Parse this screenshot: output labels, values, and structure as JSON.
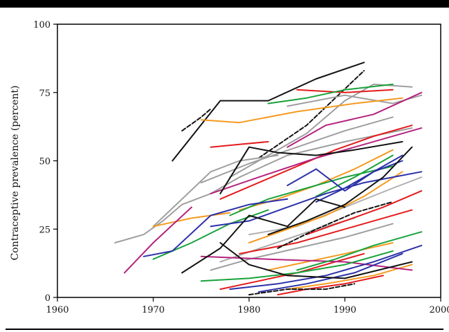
{
  "chart_data": {
    "type": "line",
    "title": "",
    "xlabel": "",
    "ylabel": "Contraceptive prevalence (percent)",
    "xlim": [
      1960,
      2000
    ],
    "ylim": [
      0,
      100
    ],
    "xticks": [
      "1960",
      "1970",
      "1980",
      "1990",
      "2000"
    ],
    "yticks": [
      "0",
      "25",
      "50",
      "75",
      "100"
    ],
    "grid": false,
    "series": [
      {
        "color": "#111111",
        "dash": "",
        "x": [
          1972,
          1977,
          1982,
          1987,
          1992
        ],
        "y": [
          50,
          72,
          72,
          80,
          86
        ]
      },
      {
        "color": "#111111",
        "dash": "6 3",
        "x": [
          1973,
          1975,
          1976
        ],
        "y": [
          61,
          66,
          69
        ]
      },
      {
        "color": "#111111",
        "dash": "6 3",
        "x": [
          1981,
          1986,
          1992
        ],
        "y": [
          51,
          63,
          83
        ]
      },
      {
        "color": "#9e9e9e",
        "dash": "",
        "x": [
          1966,
          1969,
          1971,
          1973,
          1976,
          1979,
          1984,
          1990,
          1997
        ],
        "y": [
          20,
          23,
          28,
          34,
          38,
          44,
          52,
          57,
          62
        ]
      },
      {
        "color": "#9e9e9e",
        "dash": "",
        "x": [
          1978,
          1982,
          1986,
          1990,
          1993,
          1997
        ],
        "y": [
          44,
          52,
          60,
          72,
          78,
          77
        ]
      },
      {
        "color": "#9e9e9e",
        "dash": "",
        "x": [
          1975,
          1980,
          1985,
          1990,
          1995
        ],
        "y": [
          42,
          49,
          55,
          61,
          66
        ]
      },
      {
        "color": "#9e9e9e",
        "dash": "",
        "x": [
          1970,
          1973,
          1976,
          1979,
          1983
        ],
        "y": [
          26,
          36,
          46,
          50,
          52
        ]
      },
      {
        "color": "#b0b0b0",
        "dash": "",
        "x": [
          1980,
          1985,
          1990,
          1995,
          1998
        ],
        "y": [
          23,
          26,
          33,
          40,
          44
        ]
      },
      {
        "color": "#9e9e9e",
        "dash": "",
        "x": [
          1984,
          1990,
          1995,
          1998
        ],
        "y": [
          70,
          74,
          71,
          74
        ]
      },
      {
        "color": "#9e9e9e",
        "dash": "",
        "x": [
          1976,
          1980,
          1985,
          1990,
          1995
        ],
        "y": [
          10,
          14,
          18,
          22,
          27
        ]
      },
      {
        "color": "#aaaaaa",
        "dash": "",
        "x": [
          1977,
          1982,
          1987,
          1991
        ],
        "y": [
          13,
          19,
          25,
          29
        ]
      },
      {
        "color": "#f59a1e",
        "dash": "",
        "x": [
          1975,
          1979,
          1985,
          1991,
          1996
        ],
        "y": [
          65,
          64,
          68,
          71,
          73
        ]
      },
      {
        "color": "#f59a1e",
        "dash": "",
        "x": [
          1970,
          1974,
          1978
        ],
        "y": [
          26,
          29,
          31
        ]
      },
      {
        "color": "#f59a1e",
        "dash": "",
        "x": [
          1980,
          1984,
          1988,
          1992,
          1996
        ],
        "y": [
          20,
          25,
          30,
          37,
          46
        ]
      },
      {
        "color": "#f59a1e",
        "dash": "",
        "x": [
          1979,
          1983,
          1987,
          1991,
          1995
        ],
        "y": [
          32,
          36,
          41,
          47,
          54
        ]
      },
      {
        "color": "#f59a1e",
        "dash": "",
        "x": [
          1982,
          1986,
          1990,
          1995
        ],
        "y": [
          10,
          13,
          16,
          20
        ]
      },
      {
        "color": "#f59a1e",
        "dash": "",
        "x": [
          1984,
          1988,
          1993,
          1997
        ],
        "y": [
          3,
          5,
          8,
          12
        ]
      },
      {
        "color": "#e31a1c",
        "dash": "",
        "x": [
          1985,
          1990,
          1995
        ],
        "y": [
          76,
          75,
          76
        ]
      },
      {
        "color": "#e31a1c",
        "dash": "",
        "x": [
          1977,
          1981,
          1985,
          1989,
          1993,
          1997
        ],
        "y": [
          36,
          42,
          48,
          54,
          59,
          63
        ]
      },
      {
        "color": "#e31a1c",
        "dash": "",
        "x": [
          1976,
          1979,
          1982
        ],
        "y": [
          55,
          56,
          57
        ]
      },
      {
        "color": "#e31a1c",
        "dash": "",
        "x": [
          1979,
          1985,
          1991,
          1997
        ],
        "y": [
          16,
          20,
          26,
          32
        ]
      },
      {
        "color": "#e31a1c",
        "dash": "",
        "x": [
          1986,
          1990,
          1994,
          1998
        ],
        "y": [
          23,
          28,
          33,
          39
        ]
      },
      {
        "color": "#e31a1c",
        "dash": "",
        "x": [
          1977,
          1981,
          1985,
          1989,
          1992
        ],
        "y": [
          3,
          6,
          9,
          13,
          16
        ]
      },
      {
        "color": "#e31a1c",
        "dash": "",
        "x": [
          1983,
          1986,
          1990,
          1994
        ],
        "y": [
          1,
          3,
          5,
          8
        ]
      },
      {
        "color": "#b5227d",
        "dash": "",
        "x": [
          1967,
          1970,
          1974
        ],
        "y": [
          9,
          20,
          33
        ]
      },
      {
        "color": "#b5227d",
        "dash": "",
        "x": [
          1976,
          1981,
          1987,
          1992,
          1998
        ],
        "y": [
          38,
          44,
          51,
          56,
          62
        ]
      },
      {
        "color": "#b5227d",
        "dash": "",
        "x": [
          1984,
          1988,
          1993,
          1998
        ],
        "y": [
          55,
          63,
          67,
          75
        ]
      },
      {
        "color": "#b5227d",
        "dash": "",
        "x": [
          1975,
          1982,
          1990,
          1997
        ],
        "y": [
          15,
          14,
          13,
          10
        ]
      },
      {
        "color": "#17a23a",
        "dash": "",
        "x": [
          1982,
          1986,
          1990,
          1995
        ],
        "y": [
          71,
          73,
          76,
          78
        ]
      },
      {
        "color": "#17a23a",
        "dash": "",
        "x": [
          1970,
          1974,
          1978,
          1982
        ],
        "y": [
          14,
          20,
          27,
          32
        ]
      },
      {
        "color": "#17a23a",
        "dash": "",
        "x": [
          1978,
          1982,
          1986,
          1990,
          1995
        ],
        "y": [
          30,
          36,
          40,
          44,
          48
        ]
      },
      {
        "color": "#17a23a",
        "dash": "",
        "x": [
          1975,
          1980,
          1985,
          1990,
          1995
        ],
        "y": [
          6,
          7,
          9,
          12,
          17
        ]
      },
      {
        "color": "#17a23a",
        "dash": "",
        "x": [
          1985,
          1989,
          1993,
          1998
        ],
        "y": [
          10,
          14,
          19,
          24
        ]
      },
      {
        "color": "#17a23a",
        "dash": "",
        "x": [
          1987,
          1991,
          1995
        ],
        "y": [
          37,
          44,
          52
        ]
      },
      {
        "color": "#2b2fa8",
        "dash": "",
        "x": [
          1969,
          1972,
          1976,
          1980,
          1984
        ],
        "y": [
          15,
          17,
          30,
          34,
          36
        ]
      },
      {
        "color": "#2b2fa8",
        "dash": "",
        "x": [
          1976,
          1980,
          1984,
          1988,
          1992,
          1998
        ],
        "y": [
          26,
          28,
          33,
          38,
          42,
          46
        ]
      },
      {
        "color": "#2b2fa8",
        "dash": "",
        "x": [
          1978,
          1983,
          1988,
          1993,
          1998
        ],
        "y": [
          3,
          5,
          8,
          13,
          19
        ]
      },
      {
        "color": "#2b2fa8",
        "dash": "",
        "x": [
          1981,
          1986,
          1991,
          1996
        ],
        "y": [
          2,
          5,
          9,
          16
        ]
      },
      {
        "color": "#2b2fa8",
        "dash": "",
        "x": [
          1987,
          1990,
          1993,
          1996
        ],
        "y": [
          35,
          40,
          46,
          52
        ]
      },
      {
        "color": "#2b2fa8",
        "dash": "",
        "x": [
          1984,
          1987,
          1990,
          1993,
          1996
        ],
        "y": [
          41,
          47,
          39,
          46,
          50
        ]
      },
      {
        "color": "#111111",
        "dash": "",
        "x": [
          1973,
          1977,
          1980,
          1984,
          1987,
          1990
        ],
        "y": [
          9,
          18,
          30,
          26,
          36,
          33
        ]
      },
      {
        "color": "#111111",
        "dash": "",
        "x": [
          1977,
          1980,
          1983,
          1987,
          1991,
          1996
        ],
        "y": [
          38,
          55,
          53,
          52,
          54,
          57
        ]
      },
      {
        "color": "#111111",
        "dash": "",
        "x": [
          1977,
          1980,
          1984,
          1990,
          1997
        ],
        "y": [
          20,
          12,
          8,
          7,
          13
        ]
      },
      {
        "color": "#111111",
        "dash": "",
        "x": [
          1982,
          1986,
          1990,
          1994,
          1997
        ],
        "y": [
          23,
          28,
          34,
          44,
          55
        ]
      },
      {
        "color": "#111111",
        "dash": "6 3",
        "x": [
          1980,
          1984,
          1988,
          1991
        ],
        "y": [
          1,
          3,
          3,
          5
        ]
      },
      {
        "color": "#111111",
        "dash": "6 3",
        "x": [
          1983,
          1987,
          1991,
          1995
        ],
        "y": [
          18,
          25,
          31,
          35
        ]
      }
    ]
  }
}
